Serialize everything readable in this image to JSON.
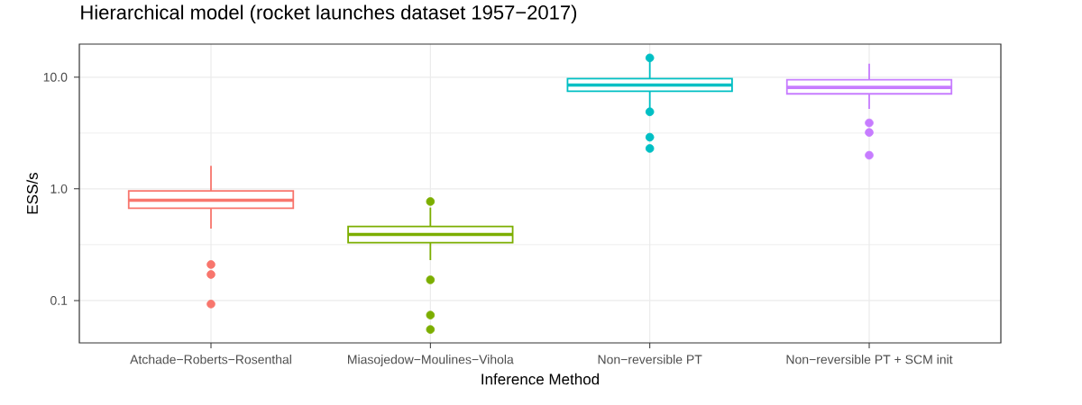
{
  "chart_data": {
    "type": "box",
    "title": "Hierarchical model (rocket launches dataset 1957−2017)",
    "xlabel": "Inference Method",
    "ylabel": "ESS/s",
    "categories": [
      "Atchade−Roberts−Rosenthal",
      "Miasojedow−Moulines−Vihola",
      "Non−reversible PT",
      "Non−reversible PT + SCM init"
    ],
    "colors": [
      "#F8766D",
      "#7CAE00",
      "#00BFC4",
      "#C77CFF"
    ],
    "boxes": [
      {
        "low": 0.44,
        "q1": 0.67,
        "median": 0.79,
        "q3": 0.96,
        "high": 1.61,
        "outliers": [
          0.21,
          0.171,
          0.093
        ]
      },
      {
        "low": 0.23,
        "q1": 0.33,
        "median": 0.39,
        "q3": 0.46,
        "high": 0.68,
        "outliers": [
          0.77,
          0.153,
          0.074,
          0.055
        ]
      },
      {
        "low": 5.3,
        "q1": 7.5,
        "median": 8.5,
        "q3": 9.7,
        "high": 13.9,
        "outliers": [
          14.9,
          4.9,
          2.9,
          2.3
        ]
      },
      {
        "low": 5.2,
        "q1": 7.1,
        "median": 8.1,
        "q3": 9.5,
        "high": 13.2,
        "outliers": [
          3.9,
          3.2,
          2.0
        ]
      }
    ],
    "log": true,
    "ylim": [
      0.0417,
      19.8
    ],
    "yticks": [
      0.1,
      {
        "value": 1,
        "label": "1.0"
      },
      {
        "value": 10,
        "label": "10.0"
      }
    ],
    "grid": true
  }
}
